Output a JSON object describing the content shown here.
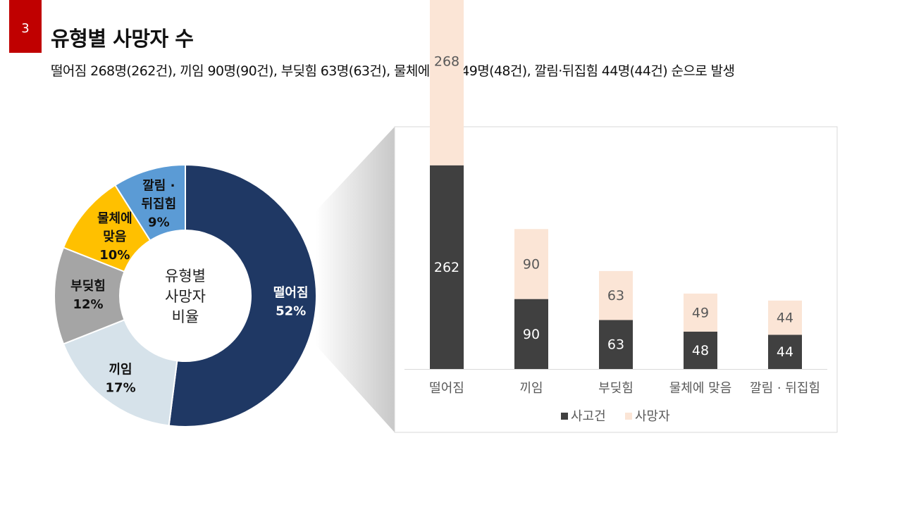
{
  "page_number": "3",
  "header": {
    "title": "유형별 사망자 수",
    "subtitle": "떨어짐 268명(262건), 끼임 90명(90건), 부딪힘 63명(63건), 물체에 맞음 49명(48건), 깔림·뒤집힘 44명(44건) 순으로 발생"
  },
  "colors": {
    "page_badge": "#c00000",
    "donut": [
      "#1f3864",
      "#d6e2ea",
      "#a5a5a5",
      "#ffc000",
      "#5b9bd5"
    ],
    "bar_cases": "#404040",
    "bar_deaths": "#fbe5d6"
  },
  "chart_data": [
    {
      "type": "pie",
      "variant": "donut",
      "center_label": [
        "유형별",
        "사망자",
        "비율"
      ],
      "slices": [
        {
          "label": [
            "떨어짐"
          ],
          "pct_label": "52%",
          "value": 52
        },
        {
          "label": [
            "끼임"
          ],
          "pct_label": "17%",
          "value": 17
        },
        {
          "label": [
            "부딪힘"
          ],
          "pct_label": "12%",
          "value": 12
        },
        {
          "label": [
            "물체에",
            "맞음"
          ],
          "pct_label": "10%",
          "value": 10
        },
        {
          "label": [
            "깔림 ·",
            "뒤집힘"
          ],
          "pct_label": "9%",
          "value": 9
        }
      ]
    },
    {
      "type": "bar",
      "stacked": true,
      "categories": [
        "떨어짐",
        "끼임",
        "부딪힘",
        "물체에 맞음",
        "깔림 · 뒤집힘"
      ],
      "series": [
        {
          "name": "사고건",
          "values": [
            262,
            90,
            63,
            48,
            44
          ]
        },
        {
          "name": "사망자",
          "values": [
            268,
            90,
            63,
            49,
            44
          ]
        }
      ],
      "legend_position": "bottom",
      "grid": false,
      "y_axis_visible": false
    }
  ]
}
